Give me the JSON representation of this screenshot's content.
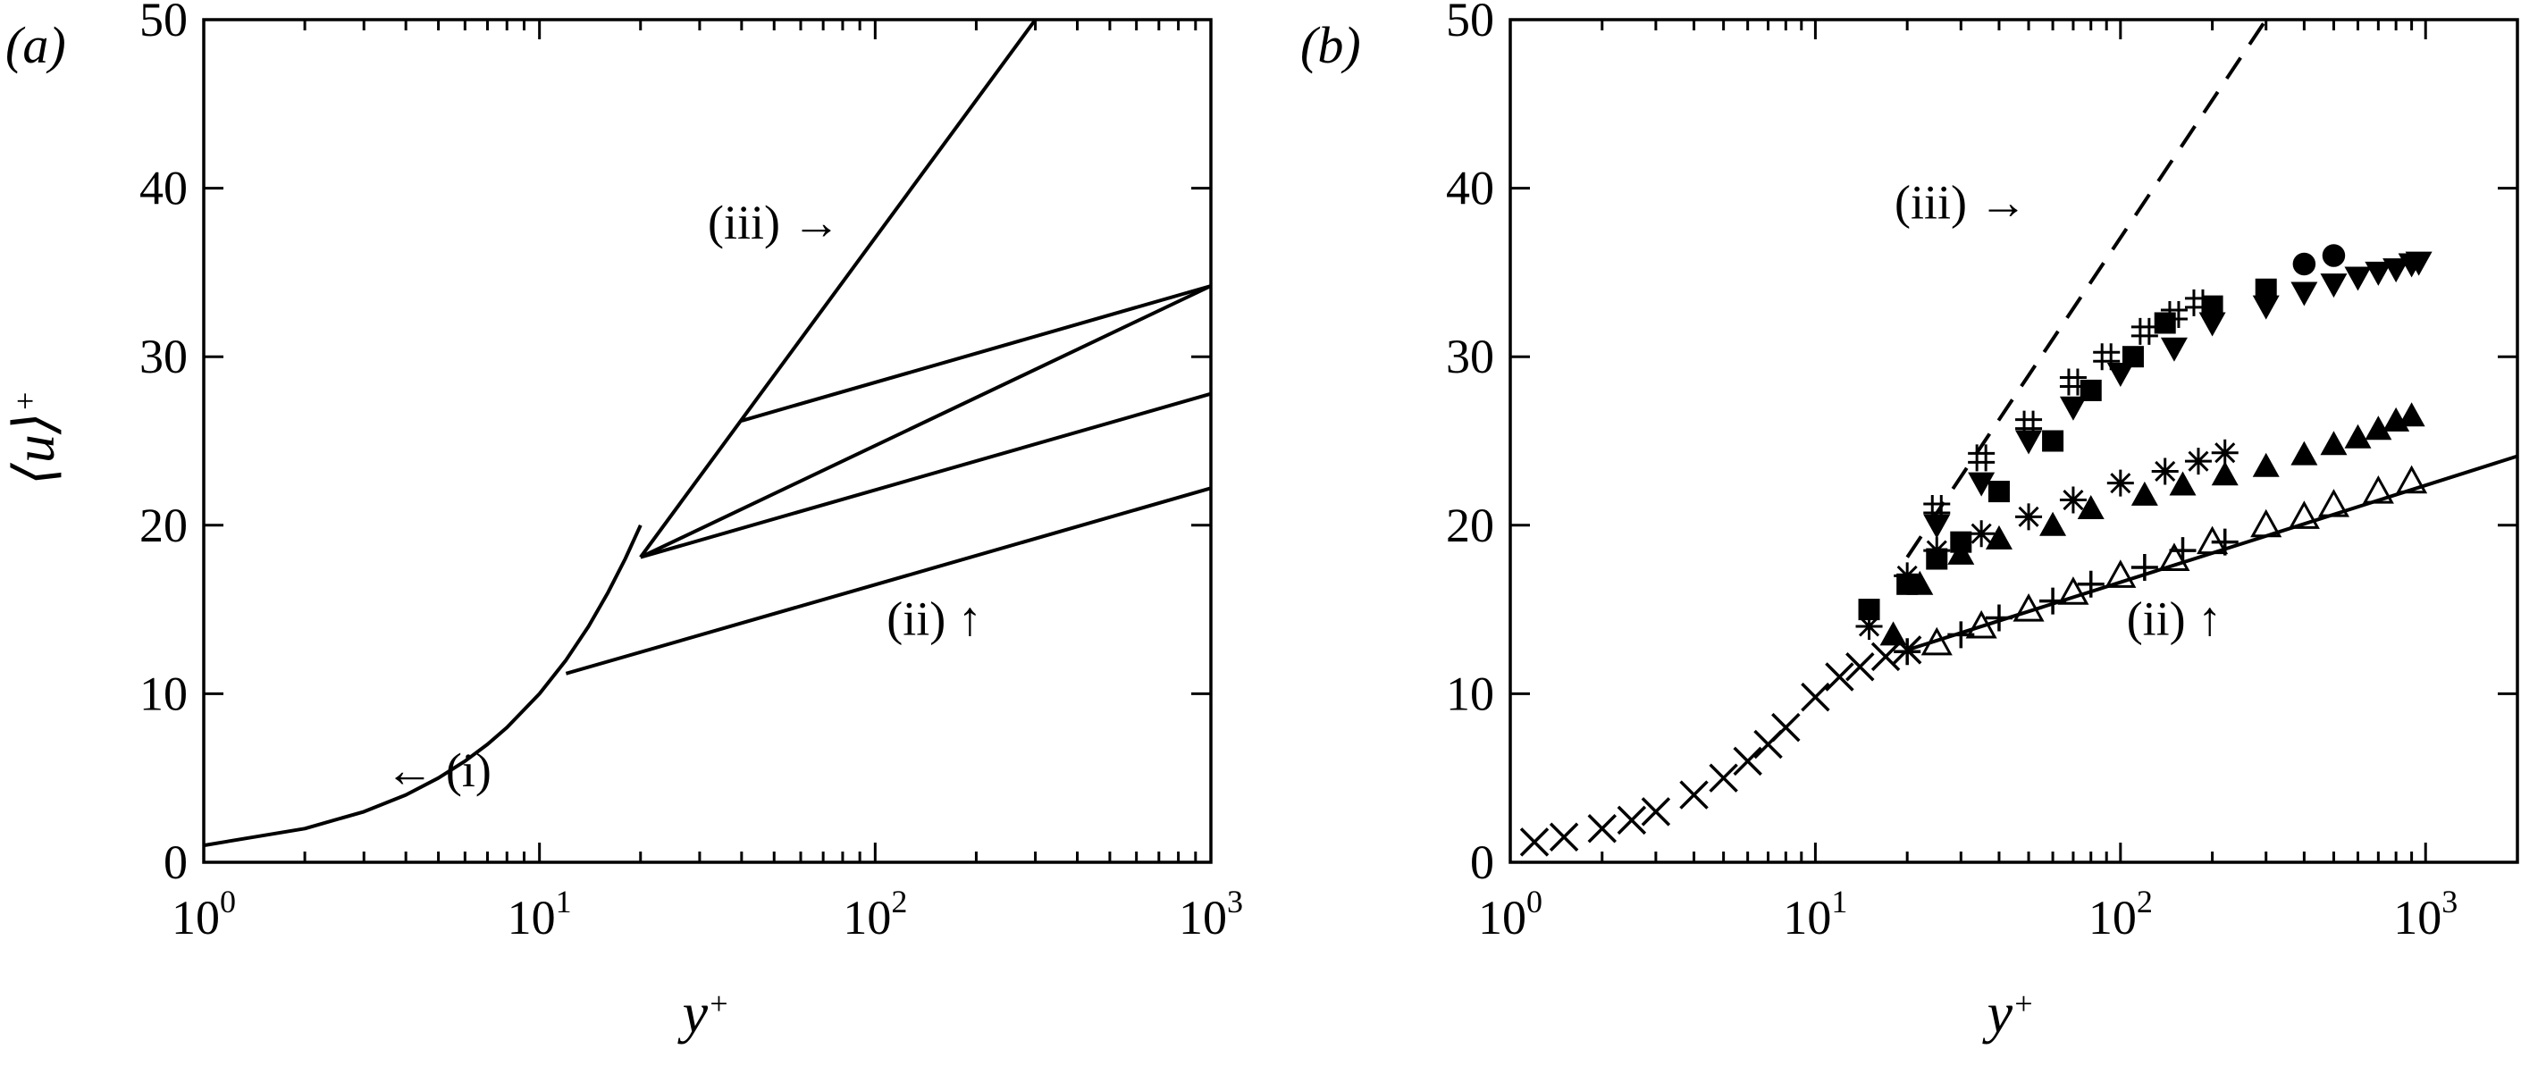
{
  "chart_data": [
    {
      "panel": "a",
      "panel_label": "(a)",
      "type": "line",
      "xlabel": "y",
      "xlabel_sup": "+",
      "ylabel": "⟨u⟩",
      "ylabel_sup": "+",
      "xscale": "log",
      "xlim": [
        1,
        1000
      ],
      "ylim": [
        0,
        50
      ],
      "x_ticks": [
        {
          "base": "10",
          "exp": "0"
        },
        {
          "base": "10",
          "exp": "1"
        },
        {
          "base": "10",
          "exp": "2"
        },
        {
          "base": "10",
          "exp": "3"
        }
      ],
      "y_ticks": [
        "0",
        "10",
        "20",
        "30",
        "40",
        "50"
      ],
      "series": [
        {
          "x": [
            1,
            2,
            3,
            4,
            5,
            6,
            7,
            8,
            10,
            12,
            14,
            16,
            18,
            20
          ],
          "y": [
            1,
            2,
            3,
            4,
            5,
            6,
            7,
            8,
            10,
            12,
            14,
            16,
            18,
            20
          ]
        },
        {
          "x": [
            20,
            1000
          ],
          "y": [
            18.1,
            34.2
          ]
        },
        {
          "x": [
            12,
            1000
          ],
          "y": [
            11.2,
            22.2
          ]
        },
        {
          "x": [
            20,
            1000
          ],
          "y": [
            18.1,
            27.8
          ]
        },
        {
          "x": [
            40,
            1000
          ],
          "y": [
            26.2,
            34.2
          ]
        },
        {
          "x": [
            20,
            300
          ],
          "y": [
            18.1,
            50
          ]
        }
      ],
      "annotations": [
        {
          "text": "(i)",
          "arrow": "←",
          "x": 5,
          "y": 4.5
        },
        {
          "text": "(ii)",
          "arrow": "↑",
          "x": 150,
          "y": 13.5
        },
        {
          "text": "(iii)",
          "arrow": "→",
          "x": 50,
          "y": 37
        }
      ]
    },
    {
      "panel": "b",
      "panel_label": "(b)",
      "type": "scatter",
      "xlabel": "y",
      "xlabel_sup": "+",
      "xscale": "log",
      "xlim": [
        1,
        2000
      ],
      "ylim": [
        0,
        50
      ],
      "x_ticks": [
        {
          "base": "10",
          "exp": "0"
        },
        {
          "base": "10",
          "exp": "1"
        },
        {
          "base": "10",
          "exp": "2"
        },
        {
          "base": "10",
          "exp": "3"
        }
      ],
      "y_ticks": [
        "0",
        "10",
        "20",
        "30",
        "40",
        "50"
      ],
      "reference_lines": [
        {
          "style": "dashed",
          "x": [
            20,
            300
          ],
          "y": [
            18.1,
            50
          ]
        },
        {
          "style": "solid",
          "x": [
            20,
            2000
          ],
          "y": [
            12.6,
            24.1
          ]
        }
      ],
      "series": [
        {
          "marker": "cross",
          "x": [
            1.2,
            1.5,
            2,
            2.5,
            3,
            4,
            5,
            6,
            7,
            8,
            10,
            12,
            14,
            17,
            20
          ],
          "y": [
            1.2,
            1.5,
            2,
            2.5,
            3,
            4,
            5,
            6,
            7,
            8,
            9.8,
            11,
            11.6,
            12.2,
            12.6
          ]
        },
        {
          "marker": "open-triangle",
          "x": [
            25,
            35,
            50,
            70,
            100,
            150,
            200,
            300,
            400,
            500,
            700,
            900
          ],
          "y": [
            13,
            14,
            15,
            16,
            17,
            18,
            19,
            20,
            20.5,
            21.2,
            22,
            22.6
          ]
        },
        {
          "marker": "plus",
          "x": [
            20,
            30,
            40,
            60,
            80,
            120,
            160,
            220
          ],
          "y": [
            12.5,
            13.5,
            14.5,
            15.5,
            16.5,
            17.5,
            18.5,
            19
          ]
        },
        {
          "marker": "filled-triangle",
          "x": [
            18,
            22,
            30,
            40,
            60,
            80,
            120,
            160,
            220,
            300,
            400,
            500,
            600,
            700,
            800,
            900
          ],
          "y": [
            13.5,
            16.5,
            18.3,
            19.2,
            20,
            21,
            21.8,
            22.4,
            23,
            23.5,
            24.2,
            24.8,
            25.2,
            25.7,
            26.2,
            26.5
          ]
        },
        {
          "marker": "star",
          "x": [
            15,
            20,
            25,
            35,
            50,
            70,
            100,
            140,
            180,
            220
          ],
          "y": [
            14,
            17,
            18.5,
            19.5,
            20.5,
            21.5,
            22.5,
            23.2,
            23.8,
            24.3
          ]
        },
        {
          "marker": "filled-down-triangle",
          "x": [
            25,
            35,
            50,
            70,
            100,
            150,
            200,
            300,
            400,
            500,
            600,
            700,
            800,
            900,
            950
          ],
          "y": [
            20,
            22.5,
            25,
            27,
            29,
            30.5,
            32,
            33,
            33.8,
            34.3,
            34.7,
            35,
            35.2,
            35.5,
            35.6
          ]
        },
        {
          "marker": "filled-square",
          "x": [
            15,
            20,
            25,
            30,
            40,
            60,
            80,
            110,
            140,
            200,
            300
          ],
          "y": [
            15,
            16.5,
            18,
            19,
            22,
            25,
            28,
            30,
            32,
            33,
            34
          ]
        },
        {
          "marker": "filled-circle",
          "x": [
            400,
            500
          ],
          "y": [
            35.5,
            36
          ]
        },
        {
          "marker": "hash",
          "x": [
            25,
            35,
            50,
            70,
            90,
            120,
            150,
            180
          ],
          "y": [
            21,
            24,
            26,
            28.5,
            30,
            31.5,
            32.5,
            33.2
          ]
        }
      ],
      "annotations": [
        {
          "text": "(ii)",
          "arrow": "↑",
          "x": 150,
          "y": 13.5
        },
        {
          "text": "(iii)",
          "arrow": "→",
          "x": 30,
          "y": 38.2
        }
      ]
    }
  ]
}
